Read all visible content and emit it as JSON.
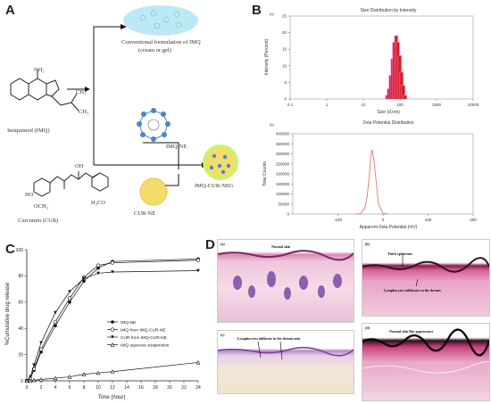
{
  "panels": {
    "a": "A",
    "b": "B",
    "c": "C",
    "d": "D"
  },
  "panel_a": {
    "imq_label": "Imiquimod (IMQ)",
    "cur_label": "Curcumin (CUR)",
    "conventional_line1": "Conventional formulation of IMQ",
    "conventional_line2": "(cream or gel)",
    "imq_ne": "IMQ-NE",
    "cur_ne": "CUR-NE",
    "imq_cur_neg": "IMQ-CUR-NEG",
    "nh2": "NH₂",
    "oh": "OH",
    "ho": "HO",
    "och3": "OCH₃",
    "h3co": "H₃CO",
    "ch3a": "CH₃",
    "ch3b": "CH₃"
  },
  "chart_data": [
    {
      "type": "bar",
      "panel_tag": "(a)",
      "title": "Size Distribution by Intensity",
      "xlabel": "Size (d.nm)",
      "ylabel": "Intensity (Percent)",
      "xscale": "log",
      "xlim": [
        0.1,
        10000
      ],
      "ylim": [
        0,
        25
      ],
      "x_ticks": [
        "0.1",
        "1",
        "10",
        "100",
        "1000",
        "10000"
      ],
      "y_ticks": [
        "0",
        "5",
        "10",
        "15",
        "20",
        "25"
      ],
      "x": [
        45,
        50,
        56,
        63,
        70,
        79,
        88,
        99,
        111,
        124,
        139
      ],
      "values": [
        1,
        3,
        7,
        12,
        17,
        19,
        17,
        13,
        8,
        4,
        1
      ],
      "colors": {
        "bar": "#d91c1c",
        "halo": "#e77ce0"
      }
    },
    {
      "type": "line",
      "panel_tag": "(b)",
      "title": "Zeta Potential Distribution",
      "xlabel": "Apparent Zeta Potential (mV)",
      "ylabel": "Total Counts",
      "xlim": [
        -200,
        200
      ],
      "ylim": [
        0,
        400000
      ],
      "x_ticks": [
        "-100",
        "0",
        "100",
        "200"
      ],
      "y_ticks": [
        "0",
        "50000",
        "100000",
        "150000",
        "200000",
        "250000",
        "300000",
        "350000",
        "400000"
      ],
      "x": [
        -60,
        -50,
        -40,
        -35,
        -30,
        -27,
        -24,
        -20,
        -15,
        -10,
        0,
        10
      ],
      "values": [
        0,
        2000,
        30000,
        90000,
        200000,
        290000,
        320000,
        270000,
        160000,
        50000,
        3000,
        0
      ],
      "colors": {
        "line": "#e07a6a"
      }
    },
    {
      "type": "line",
      "xlabel": "Time (hour)",
      "ylabel": "%Cumulative drug release",
      "xlim": [
        0,
        24
      ],
      "ylim": [
        0,
        100
      ],
      "x_ticks": [
        "0",
        "2",
        "4",
        "6",
        "8",
        "10",
        "12",
        "14",
        "16",
        "18",
        "20",
        "22",
        "24"
      ],
      "y_ticks": [
        "0",
        "20",
        "40",
        "60",
        "80",
        "100"
      ],
      "x": [
        0,
        0.5,
        1,
        2,
        4,
        6,
        8,
        10,
        12,
        24
      ],
      "series": [
        {
          "name": "IMQ-NE",
          "values": [
            0,
            2,
            8,
            22,
            42,
            60,
            76,
            86,
            91,
            93
          ],
          "marker": "filled-circle"
        },
        {
          "name": "IMQ from IMQ-CUR-NE",
          "values": [
            0,
            2,
            9,
            24,
            45,
            63,
            79,
            88,
            90,
            92
          ],
          "marker": "open-circle"
        },
        {
          "name": "CUR from IMQ-CUR-NE",
          "values": [
            0,
            3,
            12,
            29,
            52,
            68,
            78,
            82,
            83,
            84
          ],
          "marker": "filled-triangle"
        },
        {
          "name": "IMQ aqueous suspension",
          "values": [
            0,
            0,
            0.5,
            1,
            2,
            3,
            5,
            6,
            7,
            14
          ],
          "marker": "open-triangle"
        }
      ]
    }
  ],
  "panel_d": {
    "a_tag": "(a)",
    "a_title": "Normal skin",
    "b_tag": "(b)",
    "b_note1": "Thick epidermis",
    "b_note2": "Lymphocytes infiltrates in the dermis",
    "c_tag": "(c)",
    "c_note": "Lymphocytes infiltrate in the dermis only",
    "d_tag": "(d)",
    "d_note": "Normal skin like appearance"
  },
  "colors": {
    "accent": "#111111",
    "nanoparticle_blue": "#4a86c8",
    "nanoparticle_yellow": "#f3dd6a",
    "bubble_cyan": "#bde9f6",
    "tissue_pink": "#e6a3c8"
  }
}
